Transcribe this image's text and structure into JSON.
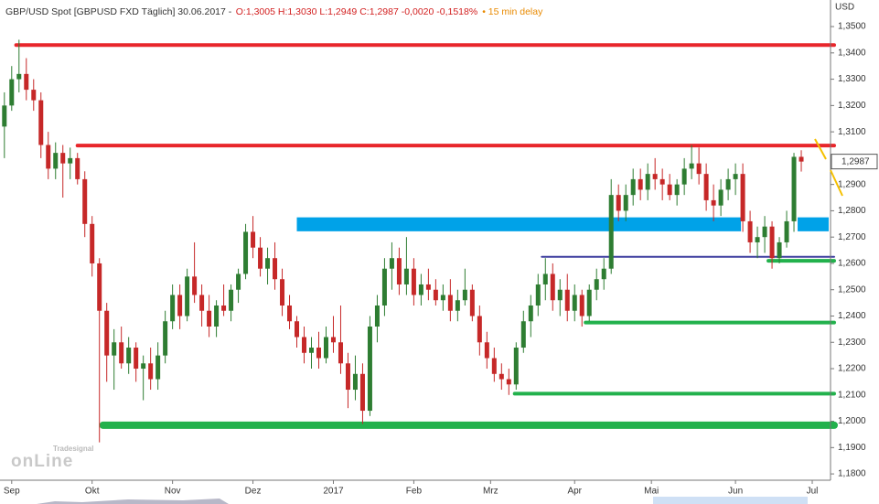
{
  "chart_data": {
    "type": "candlestick",
    "header": {
      "symbol": "GBP/USD Spot [GBPUSD FXD Täglich] 30.06.2017 -",
      "quote": "O:1,3005 H:1,3030 L:1,2949 C:1,2987 -0,0020 -0,1518%",
      "delay": "• 15 min delay"
    },
    "y_axis_title": "USD",
    "watermark": {
      "brand": "Tradesignal",
      "name": "onLine"
    },
    "up_color": "#2e7d32",
    "down_color": "#c62828",
    "ylim": [
      1.1776,
      1.3601
    ],
    "yticks": [
      {
        "value": 1.18,
        "label": "1,1800"
      },
      {
        "value": 1.19,
        "label": "1,1900"
      },
      {
        "value": 1.2,
        "label": "1,2000"
      },
      {
        "value": 1.21,
        "label": "1,2100"
      },
      {
        "value": 1.22,
        "label": "1,2200"
      },
      {
        "value": 1.23,
        "label": "1,2300"
      },
      {
        "value": 1.24,
        "label": "1,2400"
      },
      {
        "value": 1.25,
        "label": "1,2500"
      },
      {
        "value": 1.26,
        "label": "1,2600"
      },
      {
        "value": 1.27,
        "label": "1,2700"
      },
      {
        "value": 1.28,
        "label": "1,2800"
      },
      {
        "value": 1.29,
        "label": "1,2900"
      },
      {
        "value": 1.3,
        "label": "1,3000"
      },
      {
        "value": 1.31,
        "label": "1,3100"
      },
      {
        "value": 1.32,
        "label": "1,3200"
      },
      {
        "value": 1.33,
        "label": "1,3300"
      },
      {
        "value": 1.34,
        "label": "1,3400"
      },
      {
        "value": 1.35,
        "label": "1,3500"
      }
    ],
    "xlim": [
      -0.6,
      113
    ],
    "xticks": [
      {
        "value": 1,
        "label": "Sep"
      },
      {
        "value": 12,
        "label": "Okt"
      },
      {
        "value": 23,
        "label": "Nov"
      },
      {
        "value": 34,
        "label": "Dez"
      },
      {
        "value": 45,
        "label": "2017"
      },
      {
        "value": 56,
        "label": "Feb"
      },
      {
        "value": 66.5,
        "label": "Mrz"
      },
      {
        "value": 78,
        "label": "Apr"
      },
      {
        "value": 88.5,
        "label": "Mai"
      },
      {
        "value": 100,
        "label": "Jun"
      },
      {
        "value": 110.5,
        "label": "Jul"
      }
    ],
    "last_price": {
      "value": 1.2987,
      "label": "1,2987"
    },
    "levels": [
      {
        "value": 1.343,
        "from": 1.6,
        "color": "#e8262b"
      },
      {
        "value": 1.3048,
        "from": 10,
        "color": "#e8262b"
      },
      {
        "value": 1.2625,
        "from": 73.5,
        "color": "#3f3f9f"
      },
      {
        "value": 1.261,
        "from": 104.5,
        "color": "#22b14c"
      },
      {
        "value": 1.2375,
        "from": 79.5,
        "color": "#22b14c"
      },
      {
        "value": 1.2105,
        "from": 69.8,
        "color": "#22b14c"
      },
      {
        "value": 1.1985,
        "from": 13.5,
        "color": "#22b14c"
      }
    ],
    "zones": [
      {
        "low": 1.2722,
        "high": 1.2775,
        "from": 40,
        "to": 101,
        "color": "#00a2e8"
      },
      {
        "low": 1.2722,
        "high": 1.2775,
        "from": 108.5,
        "to": 113,
        "color": "#00a2e8"
      }
    ],
    "candles": [
      [
        1.312,
        1.325,
        1.3,
        1.32
      ],
      [
        1.32,
        1.335,
        1.318,
        1.33
      ],
      [
        1.33,
        1.345,
        1.325,
        1.332
      ],
      [
        1.332,
        1.338,
        1.322,
        1.326
      ],
      [
        1.326,
        1.33,
        1.318,
        1.322
      ],
      [
        1.322,
        1.325,
        1.3,
        1.305
      ],
      [
        1.305,
        1.31,
        1.292,
        1.296
      ],
      [
        1.296,
        1.306,
        1.292,
        1.302
      ],
      [
        1.302,
        1.305,
        1.285,
        1.298
      ],
      [
        1.298,
        1.304,
        1.292,
        1.3
      ],
      [
        1.3,
        1.302,
        1.29,
        1.292
      ],
      [
        1.292,
        1.295,
        1.27,
        1.275
      ],
      [
        1.275,
        1.278,
        1.255,
        1.26
      ],
      [
        1.26,
        1.262,
        1.192,
        1.242
      ],
      [
        1.242,
        1.245,
        1.215,
        1.225
      ],
      [
        1.225,
        1.235,
        1.212,
        1.23
      ],
      [
        1.23,
        1.236,
        1.22,
        1.222
      ],
      [
        1.222,
        1.232,
        1.218,
        1.228
      ],
      [
        1.228,
        1.23,
        1.215,
        1.22
      ],
      [
        1.22,
        1.225,
        1.208,
        1.222
      ],
      [
        1.222,
        1.228,
        1.212,
        1.216
      ],
      [
        1.216,
        1.23,
        1.212,
        1.225
      ],
      [
        1.225,
        1.242,
        1.222,
        1.238
      ],
      [
        1.238,
        1.252,
        1.235,
        1.248
      ],
      [
        1.248,
        1.252,
        1.235,
        1.24
      ],
      [
        1.24,
        1.258,
        1.238,
        1.255
      ],
      [
        1.255,
        1.268,
        1.245,
        1.248
      ],
      [
        1.248,
        1.252,
        1.236,
        1.242
      ],
      [
        1.242,
        1.248,
        1.232,
        1.236
      ],
      [
        1.236,
        1.246,
        1.232,
        1.244
      ],
      [
        1.244,
        1.252,
        1.24,
        1.242
      ],
      [
        1.242,
        1.252,
        1.238,
        1.25
      ],
      [
        1.25,
        1.258,
        1.245,
        1.256
      ],
      [
        1.256,
        1.275,
        1.254,
        1.272
      ],
      [
        1.272,
        1.278,
        1.262,
        1.266
      ],
      [
        1.266,
        1.27,
        1.255,
        1.258
      ],
      [
        1.258,
        1.266,
        1.252,
        1.262
      ],
      [
        1.262,
        1.268,
        1.25,
        1.254
      ],
      [
        1.254,
        1.258,
        1.24,
        1.244
      ],
      [
        1.244,
        1.248,
        1.235,
        1.238
      ],
      [
        1.238,
        1.24,
        1.228,
        1.232
      ],
      [
        1.232,
        1.236,
        1.222,
        1.226
      ],
      [
        1.226,
        1.232,
        1.22,
        1.228
      ],
      [
        1.228,
        1.234,
        1.22,
        1.224
      ],
      [
        1.224,
        1.236,
        1.222,
        1.232
      ],
      [
        1.232,
        1.24,
        1.226,
        1.23
      ],
      [
        1.23,
        1.244,
        1.218,
        1.222
      ],
      [
        1.222,
        1.226,
        1.205,
        1.212
      ],
      [
        1.212,
        1.225,
        1.208,
        1.218
      ],
      [
        1.218,
        1.222,
        1.199,
        1.204
      ],
      [
        1.204,
        1.24,
        1.202,
        1.236
      ],
      [
        1.236,
        1.248,
        1.23,
        1.244
      ],
      [
        1.244,
        1.262,
        1.24,
        1.258
      ],
      [
        1.258,
        1.268,
        1.25,
        1.262
      ],
      [
        1.262,
        1.266,
        1.248,
        1.252
      ],
      [
        1.252,
        1.27,
        1.248,
        1.258
      ],
      [
        1.258,
        1.262,
        1.244,
        1.248
      ],
      [
        1.248,
        1.256,
        1.244,
        1.252
      ],
      [
        1.252,
        1.258,
        1.246,
        1.25
      ],
      [
        1.25,
        1.254,
        1.244,
        1.246
      ],
      [
        1.246,
        1.252,
        1.242,
        1.248
      ],
      [
        1.248,
        1.254,
        1.238,
        1.242
      ],
      [
        1.242,
        1.25,
        1.238,
        1.246
      ],
      [
        1.246,
        1.258,
        1.244,
        1.25
      ],
      [
        1.25,
        1.252,
        1.238,
        1.24
      ],
      [
        1.24,
        1.244,
        1.225,
        1.23
      ],
      [
        1.23,
        1.234,
        1.22,
        1.224
      ],
      [
        1.224,
        1.228,
        1.215,
        1.218
      ],
      [
        1.218,
        1.222,
        1.212,
        1.216
      ],
      [
        1.216,
        1.22,
        1.21,
        1.214
      ],
      [
        1.214,
        1.23,
        1.212,
        1.228
      ],
      [
        1.228,
        1.242,
        1.226,
        1.238
      ],
      [
        1.238,
        1.248,
        1.232,
        1.244
      ],
      [
        1.244,
        1.256,
        1.24,
        1.252
      ],
      [
        1.252,
        1.262,
        1.246,
        1.256
      ],
      [
        1.256,
        1.26,
        1.242,
        1.246
      ],
      [
        1.246,
        1.254,
        1.24,
        1.25
      ],
      [
        1.25,
        1.256,
        1.238,
        1.242
      ],
      [
        1.242,
        1.252,
        1.238,
        1.248
      ],
      [
        1.248,
        1.25,
        1.236,
        1.24
      ],
      [
        1.24,
        1.252,
        1.238,
        1.25
      ],
      [
        1.25,
        1.258,
        1.246,
        1.254
      ],
      [
        1.254,
        1.262,
        1.25,
        1.258
      ],
      [
        1.258,
        1.292,
        1.256,
        1.286
      ],
      [
        1.286,
        1.29,
        1.276,
        1.28
      ],
      [
        1.28,
        1.29,
        1.276,
        1.286
      ],
      [
        1.286,
        1.296,
        1.282,
        1.292
      ],
      [
        1.292,
        1.296,
        1.284,
        1.288
      ],
      [
        1.288,
        1.298,
        1.284,
        1.294
      ],
      [
        1.294,
        1.3,
        1.288,
        1.292
      ],
      [
        1.292,
        1.296,
        1.284,
        1.29
      ],
      [
        1.29,
        1.294,
        1.284,
        1.286
      ],
      [
        1.286,
        1.292,
        1.282,
        1.29
      ],
      [
        1.29,
        1.3,
        1.286,
        1.296
      ],
      [
        1.296,
        1.305,
        1.292,
        1.298
      ],
      [
        1.298,
        1.304,
        1.29,
        1.294
      ],
      [
        1.294,
        1.298,
        1.28,
        1.284
      ],
      [
        1.284,
        1.29,
        1.276,
        1.282
      ],
      [
        1.282,
        1.292,
        1.278,
        1.288
      ],
      [
        1.288,
        1.296,
        1.284,
        1.292
      ],
      [
        1.292,
        1.298,
        1.286,
        1.294
      ],
      [
        1.294,
        1.298,
        1.272,
        1.276
      ],
      [
        1.276,
        1.28,
        1.264,
        1.268
      ],
      [
        1.268,
        1.274,
        1.262,
        1.27
      ],
      [
        1.27,
        1.278,
        1.264,
        1.274
      ],
      [
        1.274,
        1.276,
        1.258,
        1.262
      ],
      [
        1.262,
        1.27,
        1.26,
        1.268
      ],
      [
        1.268,
        1.28,
        1.266,
        1.276
      ],
      [
        1.276,
        1.302,
        1.272,
        1.3005
      ],
      [
        1.3005,
        1.303,
        1.2949,
        1.2987
      ]
    ]
  }
}
